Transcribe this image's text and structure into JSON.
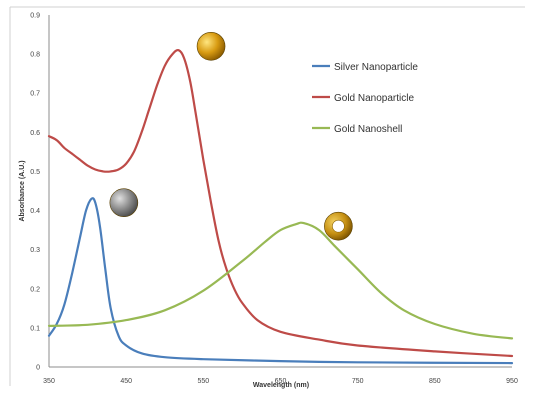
{
  "chart_data": {
    "type": "line",
    "xlabel": "Wavelength (nm)",
    "ylabel": "Absorbance (A.U.)",
    "xlim": [
      350,
      950
    ],
    "ylim": [
      0,
      0.9
    ],
    "x_ticks": [
      "350",
      "450",
      "550",
      "650",
      "750",
      "850",
      "950"
    ],
    "y_ticks": [
      "0",
      "0.1",
      "0.2",
      "0.3",
      "0.4",
      "0.5",
      "0.6",
      "0.7",
      "0.8",
      "0.9"
    ],
    "grid": false,
    "legend_position": "top-right",
    "series": [
      {
        "name": "Silver Nanoparticle",
        "color": "#4a7ebb",
        "points": [
          [
            350,
            0.08
          ],
          [
            360,
            0.11
          ],
          [
            370,
            0.16
          ],
          [
            380,
            0.24
          ],
          [
            390,
            0.33
          ],
          [
            398,
            0.4
          ],
          [
            405,
            0.43
          ],
          [
            410,
            0.42
          ],
          [
            416,
            0.36
          ],
          [
            423,
            0.25
          ],
          [
            430,
            0.15
          ],
          [
            440,
            0.08
          ],
          [
            450,
            0.055
          ],
          [
            470,
            0.035
          ],
          [
            500,
            0.025
          ],
          [
            550,
            0.02
          ],
          [
            650,
            0.015
          ],
          [
            750,
            0.012
          ],
          [
            950,
            0.01
          ]
        ]
      },
      {
        "name": "Gold Nanoparticle",
        "color": "#be4b48",
        "points": [
          [
            350,
            0.59
          ],
          [
            360,
            0.58
          ],
          [
            370,
            0.56
          ],
          [
            380,
            0.545
          ],
          [
            390,
            0.53
          ],
          [
            400,
            0.515
          ],
          [
            410,
            0.505
          ],
          [
            420,
            0.5
          ],
          [
            430,
            0.5
          ],
          [
            440,
            0.505
          ],
          [
            450,
            0.52
          ],
          [
            460,
            0.55
          ],
          [
            470,
            0.6
          ],
          [
            480,
            0.66
          ],
          [
            490,
            0.72
          ],
          [
            500,
            0.77
          ],
          [
            510,
            0.8
          ],
          [
            518,
            0.81
          ],
          [
            525,
            0.79
          ],
          [
            533,
            0.73
          ],
          [
            540,
            0.65
          ],
          [
            550,
            0.53
          ],
          [
            560,
            0.42
          ],
          [
            570,
            0.32
          ],
          [
            580,
            0.25
          ],
          [
            590,
            0.2
          ],
          [
            600,
            0.165
          ],
          [
            620,
            0.12
          ],
          [
            650,
            0.09
          ],
          [
            700,
            0.07
          ],
          [
            750,
            0.055
          ],
          [
            850,
            0.04
          ],
          [
            950,
            0.028
          ]
        ]
      },
      {
        "name": "Gold Nanoshell",
        "color": "#98b954",
        "points": [
          [
            350,
            0.105
          ],
          [
            400,
            0.108
          ],
          [
            450,
            0.12
          ],
          [
            500,
            0.145
          ],
          [
            550,
            0.195
          ],
          [
            600,
            0.27
          ],
          [
            630,
            0.32
          ],
          [
            650,
            0.35
          ],
          [
            670,
            0.365
          ],
          [
            680,
            0.368
          ],
          [
            700,
            0.35
          ],
          [
            720,
            0.31
          ],
          [
            750,
            0.25
          ],
          [
            780,
            0.19
          ],
          [
            810,
            0.145
          ],
          [
            850,
            0.11
          ],
          [
            900,
            0.085
          ],
          [
            950,
            0.073
          ]
        ]
      }
    ]
  },
  "markers": [
    {
      "name": "gold-nanoparticle-sphere-icon",
      "fill": "#d89b12",
      "x": 560,
      "y": 0.82
    },
    {
      "name": "silver-nanoparticle-sphere-icon",
      "fill": "#8c8c8c",
      "x": 447,
      "y": 0.42
    },
    {
      "name": "gold-nanoshell-ring-icon",
      "fill": "#c58f12",
      "x": 725,
      "y": 0.36
    }
  ]
}
